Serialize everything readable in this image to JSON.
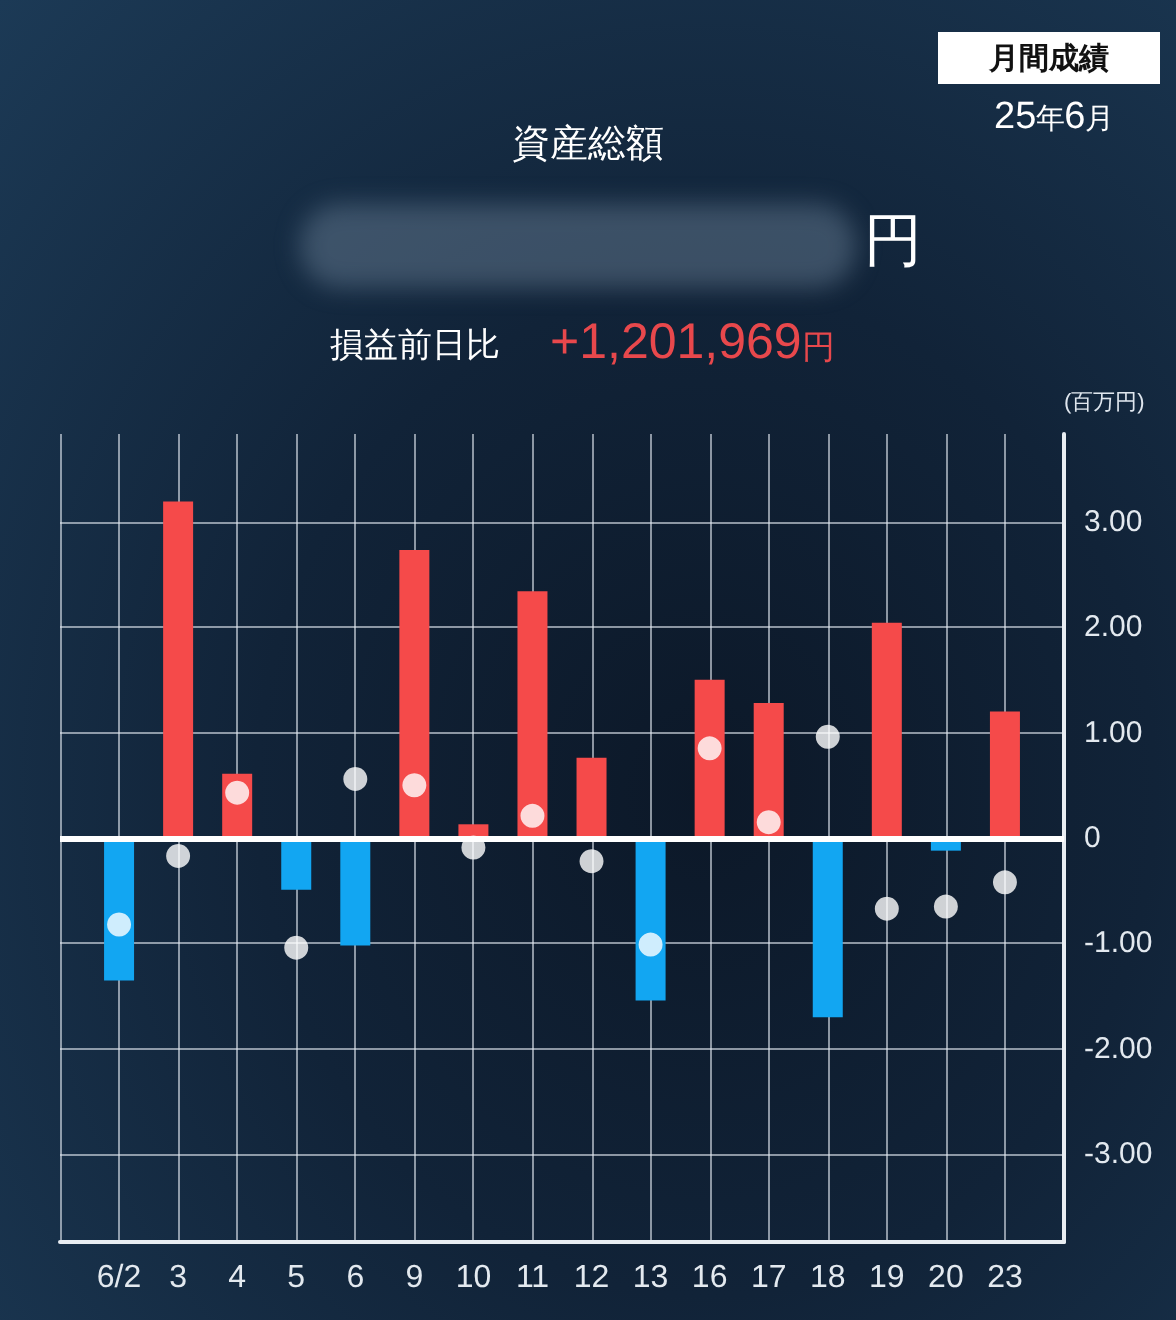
{
  "chart_data": {
    "type": "bar",
    "title": "資産総額",
    "ylabel": "(百万円)",
    "annotations": [
      "円",
      "損益前日比",
      "+1,201,969円",
      "月間成績",
      "25年6月"
    ],
    "categories": [
      "6/2",
      "3",
      "4",
      "5",
      "6",
      "9",
      "10",
      "11",
      "12",
      "13",
      "16",
      "17",
      "18",
      "19",
      "20",
      "23"
    ],
    "series": [
      {
        "values": [
          -1.35,
          3.19,
          0.61,
          -0.49,
          -1.02,
          2.73,
          0.13,
          2.34,
          0.76,
          -1.54,
          1.5,
          1.28,
          -1.7,
          2.04,
          -0.12,
          1.2
        ],
        "colors": [
          "#12a6f2",
          "#f54a4a",
          "#f54a4a",
          "#12a6f2",
          "#12a6f2",
          "#f54a4a",
          "#f54a4a",
          "#f54a4a",
          "#f54a4a",
          "#12a6f2",
          "#f54a4a",
          "#f54a4a",
          "#12a6f2",
          "#f54a4a",
          "#12a6f2",
          "#f54a4a"
        ]
      },
      {
        "type": "scatter",
        "x": [
          "6/2",
          "3",
          "4",
          "5",
          "6",
          "9",
          "10",
          "11",
          "12",
          "13",
          "16",
          "17",
          "18",
          "19",
          "20",
          "23"
        ],
        "values": [
          -0.82,
          -0.17,
          0.43,
          -1.04,
          0.56,
          0.5,
          -0.09,
          0.21,
          -0.22,
          -1.01,
          0.85,
          0.15,
          0.96,
          -0.67,
          -0.65,
          -0.42
        ],
        "color": "#ffffff",
        "marker": "circle"
      }
    ],
    "ylim": [
      -3.83,
      3.83
    ],
    "yticks": [
      {
        "value": 3,
        "label": "3.00"
      },
      {
        "value": 2,
        "label": "2.00"
      },
      {
        "value": 1,
        "label": "1.00"
      },
      0,
      {
        "value": -1,
        "label": "-1.00"
      },
      {
        "value": -2,
        "label": "-2.00"
      },
      {
        "value": -3,
        "label": "-3.00"
      }
    ],
    "grid": true,
    "ref_lines": [
      {
        "axis": "y",
        "value": 0,
        "color": "#ffffff"
      }
    ]
  }
}
